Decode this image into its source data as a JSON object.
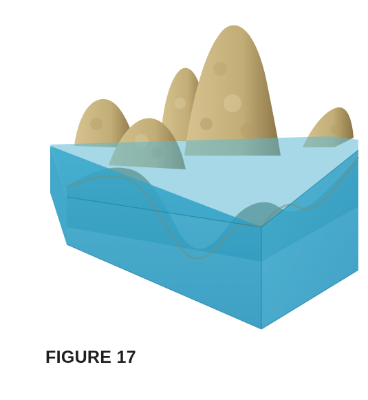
{
  "figure": {
    "caption": "FIGURE 17",
    "colors": {
      "water_side": "#2a9dc3",
      "water_top": "#5fbdd9",
      "terrain_light": "#d9c79a",
      "terrain_dark": "#9c8552"
    }
  }
}
